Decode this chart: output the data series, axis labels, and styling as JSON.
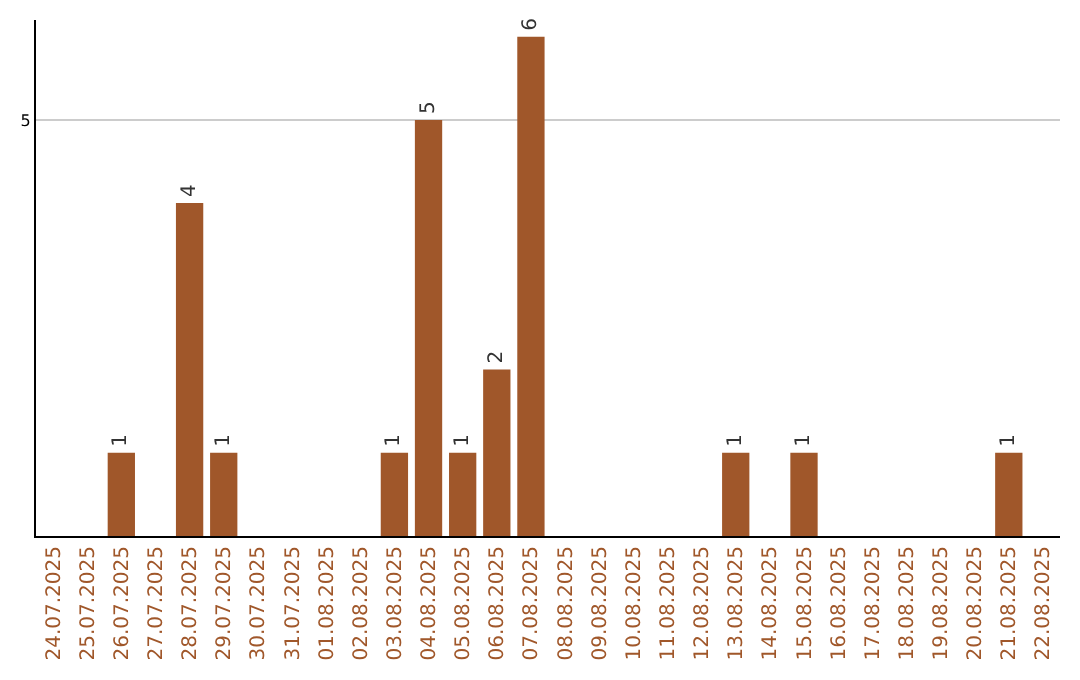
{
  "chart_data": {
    "type": "bar",
    "categories": [
      "24.07.2025",
      "25.07.2025",
      "26.07.2025",
      "27.07.2025",
      "28.07.2025",
      "29.07.2025",
      "30.07.2025",
      "31.07.2025",
      "01.08.2025",
      "02.08.2025",
      "03.08.2025",
      "04.08.2025",
      "05.08.2025",
      "06.08.2025",
      "07.08.2025",
      "08.08.2025",
      "09.08.2025",
      "10.08.2025",
      "11.08.2025",
      "12.08.2025",
      "13.08.2025",
      "14.08.2025",
      "15.08.2025",
      "16.08.2025",
      "17.08.2025",
      "18.08.2025",
      "19.08.2025",
      "20.08.2025",
      "21.08.2025",
      "22.08.2025"
    ],
    "values": [
      0,
      0,
      1,
      0,
      4,
      1,
      0,
      0,
      0,
      0,
      1,
      5,
      1,
      2,
      6,
      0,
      0,
      0,
      0,
      0,
      1,
      0,
      1,
      0,
      0,
      0,
      0,
      0,
      1,
      0
    ],
    "value_labels": [
      null,
      null,
      "1",
      null,
      "4",
      "1",
      null,
      null,
      null,
      null,
      "1",
      "5",
      "1",
      "2",
      "6",
      null,
      null,
      null,
      null,
      null,
      "1",
      null,
      "1",
      null,
      null,
      null,
      null,
      null,
      "1",
      null
    ],
    "color": "#a0572a",
    "ylim": [
      0,
      6.2
    ],
    "yticks": [
      5
    ],
    "grid": "y"
  }
}
